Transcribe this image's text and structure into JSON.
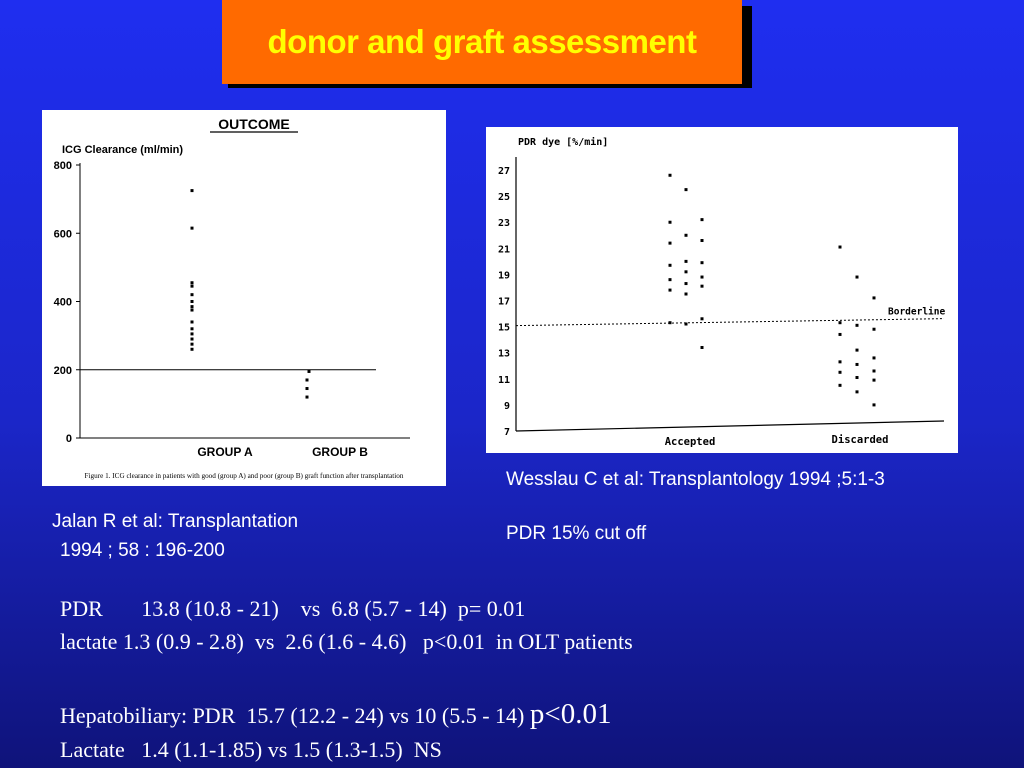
{
  "slide": {
    "title": "donor and graft assessment",
    "citations": {
      "jalan_line1": "Jalan R et al: Transplantation",
      "jalan_line2": "1994 ; 58 : 196-200",
      "wesslau": "Wesslau C et al: Transplantology 1994 ;5:1-3",
      "cutoff": "PDR 15% cut off"
    },
    "stats": {
      "line1": "PDR       13.8 (10.8 - 21)    vs  6.8 (5.7 - 14)  p= 0.01",
      "line2": "lactate 1.3 (0.9 - 2.8)  vs  2.6 (1.6 - 4.6)   p<0.01  in OLT patients",
      "line3_main": "Hepatobiliary: PDR  15.7 (12.2 - 24) vs 10 (5.5 - 14) ",
      "line3_p": "p<0.01",
      "line4": "Lactate   1.4 (1.1-1.85) vs 1.5 (1.3-1.5)  NS"
    },
    "colors": {
      "title_bg": "#ff6a00",
      "title_text": "#ffff00",
      "background": "#1f2ef0"
    }
  },
  "chart_data": [
    {
      "type": "scatter",
      "title": "OUTCOME",
      "ylabel": "ICG Clearance (ml/min)",
      "xlabel": "",
      "caption": "Figure 1. ICG clearance in patients with good (group A) and poor (group B) graft function after transplantation",
      "categories": [
        "GROUP A",
        "GROUP B"
      ],
      "ylim": [
        0,
        800
      ],
      "yticks": [
        "0",
        "200",
        "400",
        "600",
        "800"
      ],
      "reference_line": 200,
      "series": [
        {
          "category": "GROUP A",
          "values": [
            725,
            615,
            455,
            445,
            420,
            400,
            385,
            375,
            340,
            320,
            305,
            290,
            275,
            260
          ]
        },
        {
          "category": "GROUP B",
          "values": [
            195,
            170,
            145,
            120
          ]
        }
      ]
    },
    {
      "type": "scatter",
      "title": "",
      "ylabel": "PDR dye [%/min]",
      "xlabel": "",
      "categories": [
        "Accepted",
        "Discarded"
      ],
      "ylim": [
        7,
        28
      ],
      "yticks": [
        "7",
        "9",
        "11",
        "13",
        "15",
        "17",
        "19",
        "21",
        "23",
        "25",
        "27"
      ],
      "reference_line": 15,
      "reference_label": "Borderline",
      "series": [
        {
          "category": "Accepted",
          "values": [
            26.6,
            25.5,
            23.2,
            23.0,
            22.0,
            21.6,
            21.4,
            20.0,
            19.9,
            19.7,
            19.2,
            18.8,
            18.6,
            18.3,
            18.1,
            17.8,
            17.5,
            15.6,
            15.3,
            15.2,
            13.4
          ]
        },
        {
          "category": "Discarded",
          "values": [
            21.1,
            18.8,
            17.2,
            15.3,
            15.1,
            14.8,
            14.4,
            13.2,
            12.6,
            12.3,
            12.1,
            11.6,
            11.5,
            11.1,
            10.9,
            10.5,
            10.0,
            9.0
          ]
        }
      ]
    }
  ]
}
